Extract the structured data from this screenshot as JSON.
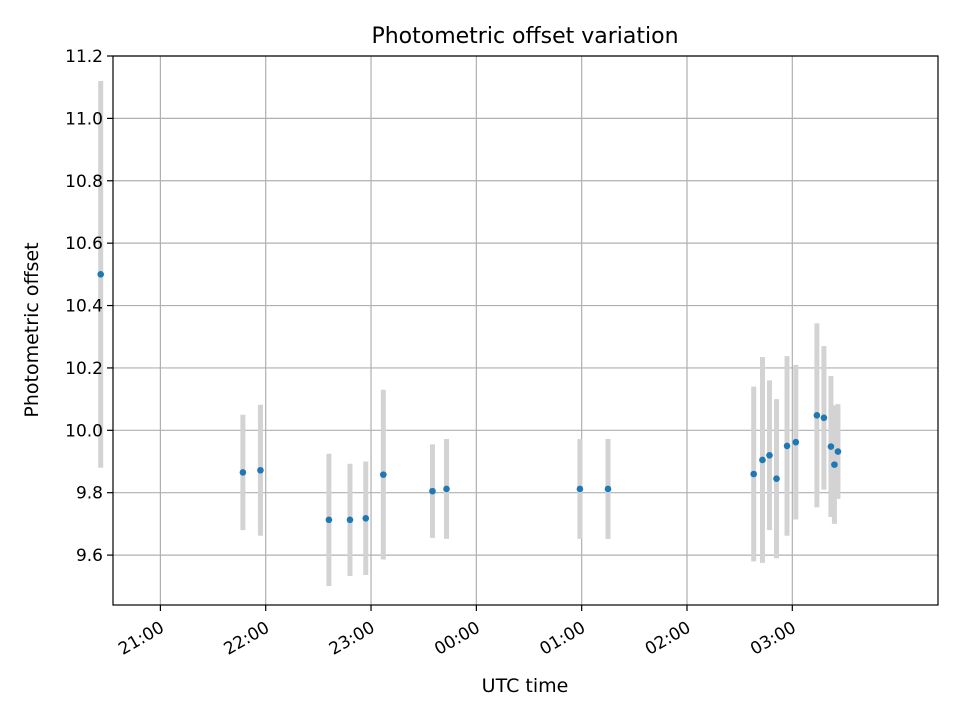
{
  "chart_data": {
    "type": "scatter",
    "title": "Photometric offset variation",
    "xlabel": "UTC time",
    "ylabel": "Photometric offset",
    "ylim": [
      9.44,
      11.2
    ],
    "xlim": [
      "20:33",
      "04:23"
    ],
    "grid": true,
    "x_ticks": [
      "21:00",
      "22:00",
      "23:00",
      "00:00",
      "01:00",
      "02:00",
      "03:00"
    ],
    "y_ticks": [
      "9.6",
      "9.8",
      "10.0",
      "10.2",
      "10.4",
      "10.6",
      "10.8",
      "11.0",
      "11.2"
    ],
    "marker_color": "#1f77b4",
    "errorbar_color": "#d3d3d3",
    "points": [
      {
        "x": "20:26",
        "y": 10.5,
        "err": 0.62
      },
      {
        "x": "21:47",
        "y": 9.865,
        "err": 0.185
      },
      {
        "x": "21:57",
        "y": 9.872,
        "err": 0.21
      },
      {
        "x": "22:36",
        "y": 9.713,
        "err": 0.212
      },
      {
        "x": "22:48",
        "y": 9.713,
        "err": 0.18
      },
      {
        "x": "22:57",
        "y": 9.718,
        "err": 0.182
      },
      {
        "x": "23:07",
        "y": 9.858,
        "err": 0.272
      },
      {
        "x": "23:35",
        "y": 9.805,
        "err": 0.15
      },
      {
        "x": "23:43",
        "y": 9.812,
        "err": 0.16
      },
      {
        "x": "00:59",
        "y": 9.812,
        "err": 0.16
      },
      {
        "x": "01:15",
        "y": 9.812,
        "err": 0.16
      },
      {
        "x": "02:38",
        "y": 9.86,
        "err": 0.28
      },
      {
        "x": "02:43",
        "y": 9.905,
        "err": 0.33
      },
      {
        "x": "02:47",
        "y": 9.92,
        "err": 0.24
      },
      {
        "x": "02:51",
        "y": 9.845,
        "err": 0.255
      },
      {
        "x": "02:57",
        "y": 9.95,
        "err": 0.288
      },
      {
        "x": "03:02",
        "y": 9.962,
        "err": 0.248
      },
      {
        "x": "03:14",
        "y": 10.048,
        "err": 0.295
      },
      {
        "x": "03:18",
        "y": 10.04,
        "err": 0.23
      },
      {
        "x": "03:22",
        "y": 9.948,
        "err": 0.226
      },
      {
        "x": "03:24",
        "y": 9.89,
        "err": 0.19
      },
      {
        "x": "03:26",
        "y": 9.932,
        "err": 0.152
      }
    ]
  }
}
